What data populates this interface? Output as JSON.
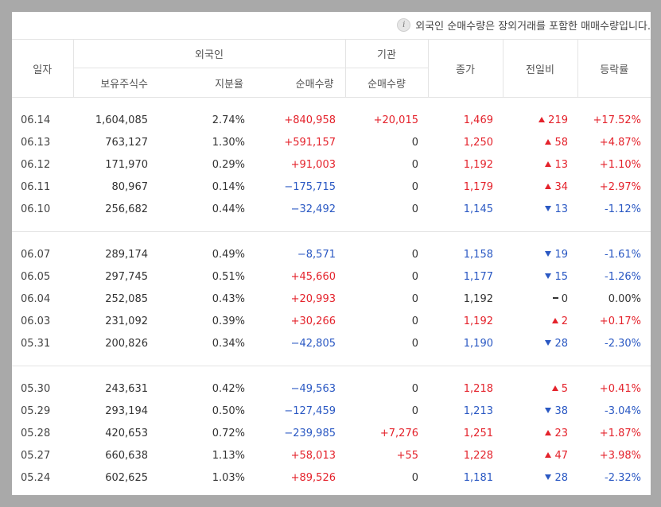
{
  "notice": "외국인 순매수량은 장외거래를 포함한 매매수량입니다.",
  "headers": {
    "date": "일자",
    "foreign": "외국인",
    "institution": "기관",
    "close": "종가",
    "change": "전일비",
    "rate": "등락률",
    "holdings": "보유주식수",
    "ratio": "지분율",
    "foreign_net": "순매수량",
    "inst_net": "순매수량"
  },
  "colors": {
    "up": "#e4222b",
    "down": "#2a58c3",
    "background": "#a9a9a9"
  },
  "groups": [
    [
      {
        "date": "06.14",
        "holdings": "1,604,085",
        "ratio": "2.74%",
        "foreign_net": "+840,958",
        "foreign_dir": "up",
        "inst_net": "+20,015",
        "inst_dir": "up",
        "close": "1,469",
        "dir": "up",
        "change": "219",
        "rate": "+17.52%"
      },
      {
        "date": "06.13",
        "holdings": "763,127",
        "ratio": "1.30%",
        "foreign_net": "+591,157",
        "foreign_dir": "up",
        "inst_net": "0",
        "inst_dir": "flat",
        "close": "1,250",
        "dir": "up",
        "change": "58",
        "rate": "+4.87%"
      },
      {
        "date": "06.12",
        "holdings": "171,970",
        "ratio": "0.29%",
        "foreign_net": "+91,003",
        "foreign_dir": "up",
        "inst_net": "0",
        "inst_dir": "flat",
        "close": "1,192",
        "dir": "up",
        "change": "13",
        "rate": "+1.10%"
      },
      {
        "date": "06.11",
        "holdings": "80,967",
        "ratio": "0.14%",
        "foreign_net": "−175,715",
        "foreign_dir": "down",
        "inst_net": "0",
        "inst_dir": "flat",
        "close": "1,179",
        "dir": "up",
        "change": "34",
        "rate": "+2.97%"
      },
      {
        "date": "06.10",
        "holdings": "256,682",
        "ratio": "0.44%",
        "foreign_net": "−32,492",
        "foreign_dir": "down",
        "inst_net": "0",
        "inst_dir": "flat",
        "close": "1,145",
        "dir": "down",
        "change": "13",
        "rate": "-1.12%"
      }
    ],
    [
      {
        "date": "06.07",
        "holdings": "289,174",
        "ratio": "0.49%",
        "foreign_net": "−8,571",
        "foreign_dir": "down",
        "inst_net": "0",
        "inst_dir": "flat",
        "close": "1,158",
        "dir": "down",
        "change": "19",
        "rate": "-1.61%"
      },
      {
        "date": "06.05",
        "holdings": "297,745",
        "ratio": "0.51%",
        "foreign_net": "+45,660",
        "foreign_dir": "up",
        "inst_net": "0",
        "inst_dir": "flat",
        "close": "1,177",
        "dir": "down",
        "change": "15",
        "rate": "-1.26%"
      },
      {
        "date": "06.04",
        "holdings": "252,085",
        "ratio": "0.43%",
        "foreign_net": "+20,993",
        "foreign_dir": "up",
        "inst_net": "0",
        "inst_dir": "flat",
        "close": "1,192",
        "dir": "flat",
        "change": "0",
        "rate": "0.00%"
      },
      {
        "date": "06.03",
        "holdings": "231,092",
        "ratio": "0.39%",
        "foreign_net": "+30,266",
        "foreign_dir": "up",
        "inst_net": "0",
        "inst_dir": "flat",
        "close": "1,192",
        "dir": "up",
        "change": "2",
        "rate": "+0.17%"
      },
      {
        "date": "05.31",
        "holdings": "200,826",
        "ratio": "0.34%",
        "foreign_net": "−42,805",
        "foreign_dir": "down",
        "inst_net": "0",
        "inst_dir": "flat",
        "close": "1,190",
        "dir": "down",
        "change": "28",
        "rate": "-2.30%"
      }
    ],
    [
      {
        "date": "05.30",
        "holdings": "243,631",
        "ratio": "0.42%",
        "foreign_net": "−49,563",
        "foreign_dir": "down",
        "inst_net": "0",
        "inst_dir": "flat",
        "close": "1,218",
        "dir": "up",
        "change": "5",
        "rate": "+0.41%"
      },
      {
        "date": "05.29",
        "holdings": "293,194",
        "ratio": "0.50%",
        "foreign_net": "−127,459",
        "foreign_dir": "down",
        "inst_net": "0",
        "inst_dir": "flat",
        "close": "1,213",
        "dir": "down",
        "change": "38",
        "rate": "-3.04%"
      },
      {
        "date": "05.28",
        "holdings": "420,653",
        "ratio": "0.72%",
        "foreign_net": "−239,985",
        "foreign_dir": "down",
        "inst_net": "+7,276",
        "inst_dir": "up",
        "close": "1,251",
        "dir": "up",
        "change": "23",
        "rate": "+1.87%"
      },
      {
        "date": "05.27",
        "holdings": "660,638",
        "ratio": "1.13%",
        "foreign_net": "+58,013",
        "foreign_dir": "up",
        "inst_net": "+55",
        "inst_dir": "up",
        "close": "1,228",
        "dir": "up",
        "change": "47",
        "rate": "+3.98%"
      },
      {
        "date": "05.24",
        "holdings": "602,625",
        "ratio": "1.03%",
        "foreign_net": "+89,526",
        "foreign_dir": "up",
        "inst_net": "0",
        "inst_dir": "flat",
        "close": "1,181",
        "dir": "down",
        "change": "28",
        "rate": "-2.32%"
      }
    ]
  ]
}
